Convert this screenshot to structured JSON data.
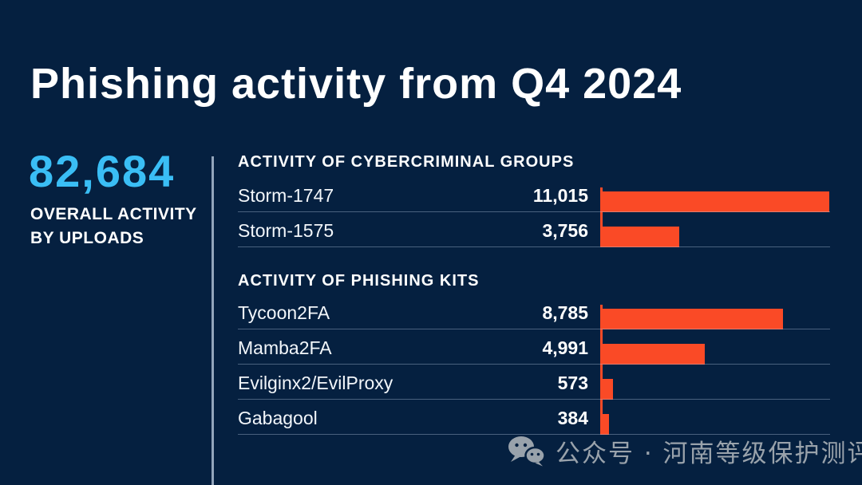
{
  "title": "Phishing activity from Q4 2024",
  "overall": {
    "value": "82,684",
    "label": "OVERALL ACTIVITY\nBY UPLOADS"
  },
  "colors": {
    "background": "#052040",
    "accent_blue": "#3ABEF5",
    "bar_red": "#FA4A26",
    "divider": "#93A5BB",
    "watermark_gray": "#99A2AB"
  },
  "watermark": {
    "icon": "wechat-icon",
    "text": "公众号 · 河南等级保护测评"
  },
  "chart_data": [
    {
      "type": "bar",
      "orientation": "horizontal",
      "title": "ACTIVITY OF CYBERCRIMINAL GROUPS",
      "categories": [
        "Storm-1747",
        "Storm-1575"
      ],
      "values": [
        11015,
        3756
      ],
      "value_labels": [
        "11,015",
        "3,756"
      ],
      "xlim": [
        0,
        11100
      ],
      "grid": false,
      "legend": "none"
    },
    {
      "type": "bar",
      "orientation": "horizontal",
      "title": "ACTIVITY OF PHISHING KITS",
      "categories": [
        "Tycoon2FA",
        "Mamba2FA",
        "Evilginx2/EvilProxy",
        "Gabagool"
      ],
      "values": [
        8785,
        4991,
        573,
        384
      ],
      "value_labels": [
        "8,785",
        "4,991",
        "573",
        "384"
      ],
      "xlim": [
        0,
        11100
      ],
      "grid": false,
      "legend": "none"
    }
  ]
}
